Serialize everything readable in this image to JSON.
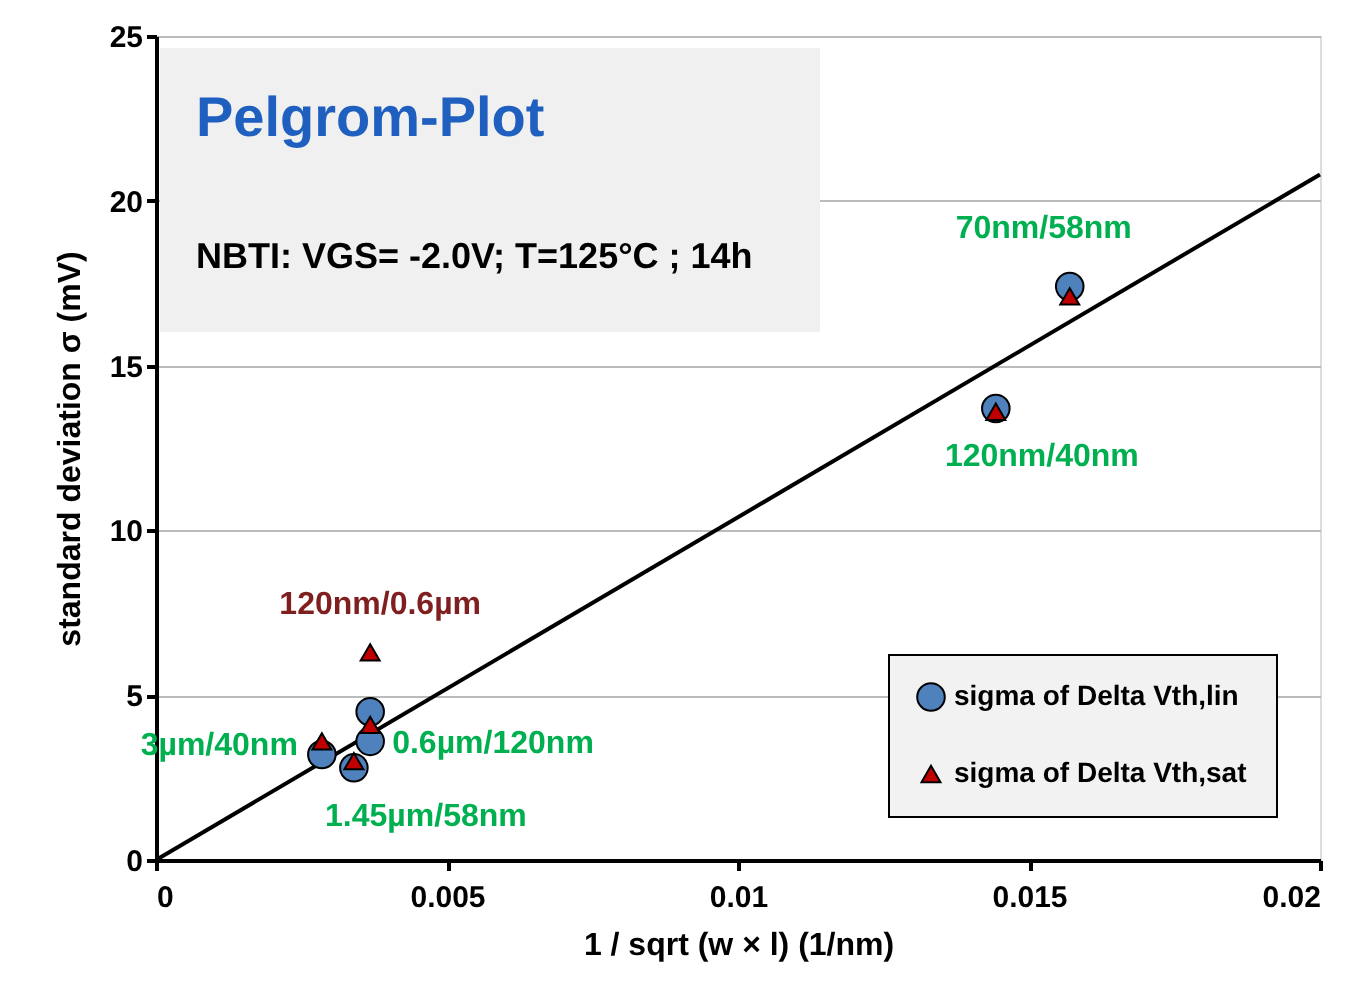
{
  "chart_data": {
    "type": "scatter",
    "title": "Pelgrom-Plot",
    "subtitle": "NBTI: VGS= -2.0V; T=125°C ; 14h",
    "xlabel": "1 / sqrt (w × l)   (1/nm)",
    "ylabel": "standard deviation σ (mV)",
    "xlim": [
      0,
      0.02
    ],
    "xticks": [
      0,
      0.005,
      0.01,
      0.015,
      0.02
    ],
    "ylim": [
      0,
      25
    ],
    "yticks": [
      0,
      5,
      10,
      15,
      20,
      25
    ],
    "grid": "y",
    "legend": "bottom right",
    "series": [
      {
        "name": "sigma of Delta Vth,lin",
        "color": "#4f81bd",
        "marker": "circle",
        "x": [
          0.00285,
          0.0034,
          0.00368,
          0.00368,
          0.01443,
          0.0157
        ],
        "values": [
          3.2,
          2.8,
          4.5,
          3.6,
          13.7,
          17.4
        ]
      },
      {
        "name": "sigma of Delta Vth,sat",
        "color": "#c00000",
        "marker": "triangle",
        "x": [
          0.00285,
          0.0034,
          0.00368,
          0.00368,
          0.01443,
          0.0157
        ],
        "values": [
          3.6,
          3.0,
          6.3,
          4.1,
          13.6,
          17.1
        ]
      },
      {
        "type": "line",
        "color": "#000000",
        "x": [
          0,
          0.02
        ],
        "values": [
          0,
          20.8
        ]
      }
    ],
    "annotations": [
      {
        "text": "70nm/58nm",
        "x": 0.0157,
        "y": 17.4
      },
      {
        "text": "120nm/40nm",
        "x": 0.01443,
        "y": 13.7
      },
      {
        "text": "120nm/0.6µm",
        "x": 0.00368,
        "y": 6.3
      },
      {
        "text": "3µm/40nm",
        "x": 0.00285,
        "y": 3.2
      },
      {
        "text": "0.6µm/120nm",
        "x": 0.00368,
        "y": 3.6
      },
      {
        "text": "1.45µm/58nm",
        "x": 0.0034,
        "y": 2.8
      }
    ]
  }
}
